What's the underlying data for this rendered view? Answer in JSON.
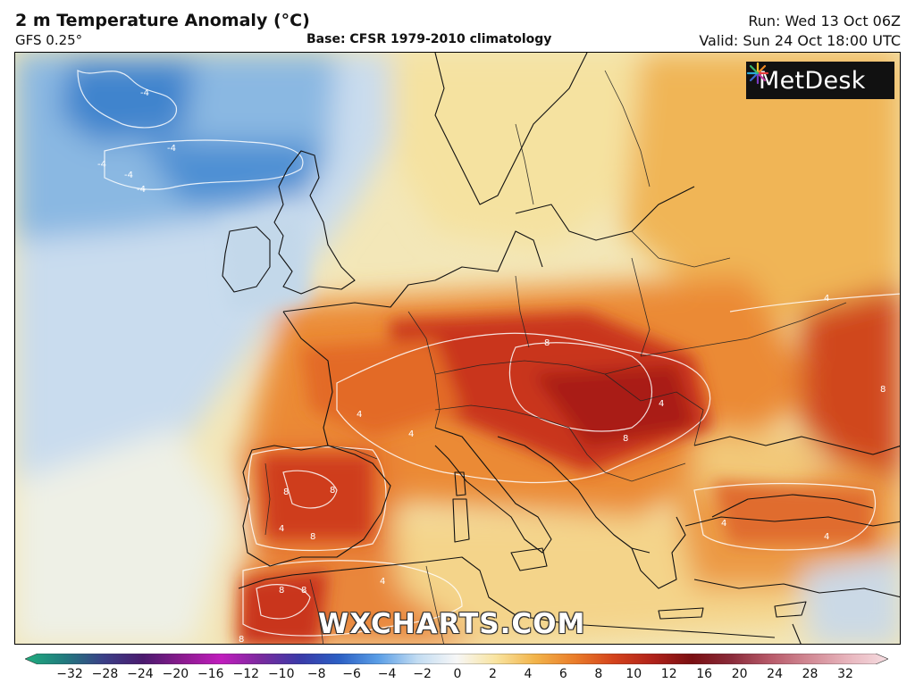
{
  "header": {
    "title": "2 m Temperature Anomaly (°C)",
    "model": "GFS 0.25°",
    "base": "Base: CFSR 1979-2010 climatology",
    "run": "Run: Wed 13 Oct 06Z",
    "valid": "Valid: Sun 24 Oct 18:00 UTC"
  },
  "branding": {
    "logo_text": "MetDesk",
    "watermark": "WXCHARTS.COM"
  },
  "map": {
    "region": "Europe",
    "contour_labels": [
      "-4",
      "-4",
      "-4",
      "-4",
      "-4",
      "4",
      "4",
      "4",
      "4",
      "4",
      "4",
      "4",
      "4",
      "8",
      "8",
      "8",
      "8",
      "8",
      "8",
      "8",
      "8",
      "8"
    ]
  },
  "colorbar": {
    "ticks": [
      "−32",
      "−28",
      "−24",
      "−20",
      "−16",
      "−12",
      "−10",
      "−8",
      "−6",
      "−4",
      "−2",
      "0",
      "2",
      "4",
      "6",
      "8",
      "10",
      "12",
      "16",
      "20",
      "24",
      "28",
      "32"
    ],
    "stops": [
      "#1fae7e",
      "#217a7e",
      "#3a3f87",
      "#4a1a6e",
      "#8a1a8e",
      "#c11dbd",
      "#7a2a9e",
      "#3a3aa8",
      "#2b5fc4",
      "#5a9ee6",
      "#c2dcf2",
      "#f7f7f7",
      "#f9e4a0",
      "#f2b44a",
      "#ea7d2a",
      "#d4431c",
      "#b0221a",
      "#7a0f12",
      "#8a2b3a",
      "#b85a6a",
      "#d28a95",
      "#e8b6be",
      "#f6dde1"
    ]
  }
}
